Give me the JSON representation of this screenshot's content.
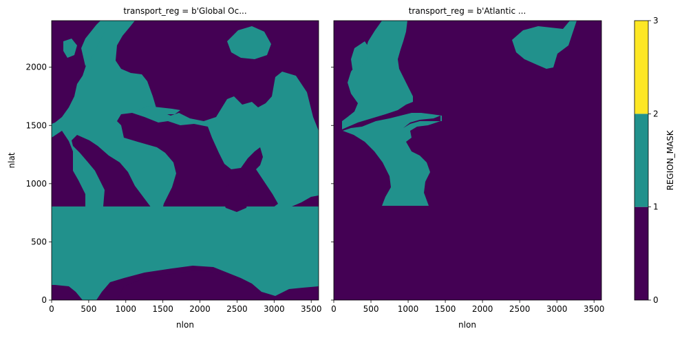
{
  "chart_data": {
    "type": "heatmap",
    "panels": [
      {
        "title": "transport_reg = b'Global Oc...",
        "xlabel": "nlon",
        "ylabel": "nlat",
        "xlim": [
          0,
          3600
        ],
        "ylim": [
          0,
          2400
        ],
        "xticks": [
          0,
          500,
          1000,
          1500,
          2000,
          2500,
          3000,
          3500
        ],
        "yticks": [
          0,
          500,
          1000,
          1500,
          2000
        ],
        "region_value": 1
      },
      {
        "title": "transport_reg = b'Atlantic ...",
        "xlabel": "nlon",
        "ylabel": "",
        "xlim": [
          0,
          3600
        ],
        "ylim": [
          0,
          2400
        ],
        "xticks": [
          0,
          500,
          1000,
          1500,
          2000,
          2500,
          3000,
          3500
        ],
        "yticks": [
          0,
          500,
          1000,
          1500,
          2000
        ],
        "region_value": 1
      }
    ],
    "colorbar": {
      "label": "REGION_MASK",
      "ticks": [
        0,
        1,
        2,
        3
      ],
      "range": [
        0,
        3
      ],
      "levels": [
        {
          "from": 0,
          "to": 1,
          "color": "#440154"
        },
        {
          "from": 1,
          "to": 2,
          "color": "#21918c"
        },
        {
          "from": 2,
          "to": 3,
          "color": "#fde725"
        }
      ]
    },
    "colors": {
      "background_value": "#440154",
      "region_value": "#21918c",
      "top_value": "#fde725"
    }
  }
}
